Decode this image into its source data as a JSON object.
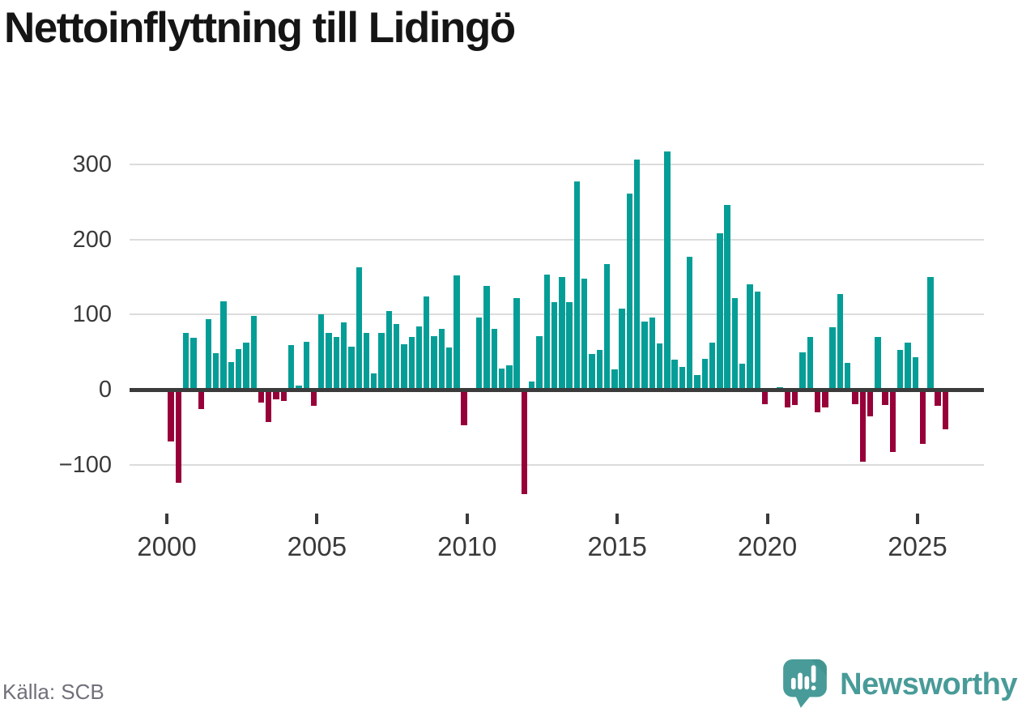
{
  "title": "Nettoinflyttning till Lidingö",
  "source": "Källa: SCB",
  "brand": {
    "name": "Newsworthy",
    "icon": "newsworthy-speech-bubble-chart-icon",
    "color": "#489B98"
  },
  "colors": {
    "positive": "#049E97",
    "negative": "#970038",
    "grid": "#DCDCDC",
    "axis": "#3B3B3B",
    "text": "#3A3A3A",
    "muted": "#70707A"
  },
  "chart_data": {
    "type": "bar",
    "title": "Nettoinflyttning till Lidingö",
    "xlabel": "",
    "ylabel": "",
    "frequency": "quarterly",
    "period_start": "2000-Q1",
    "period_end": "2025-Q4",
    "x_tick_labels": [
      "2000",
      "2005",
      "2010",
      "2015",
      "2020",
      "2025"
    ],
    "y_ticks": [
      300,
      200,
      100,
      0,
      -100
    ],
    "y_tick_labels": [
      "300",
      "200",
      "100",
      "0",
      "−100"
    ],
    "ylim": [
      -140,
      330
    ],
    "grid": "horizontal",
    "legend": "none",
    "positive_color": "#049E97",
    "negative_color": "#970038",
    "values": [
      -69,
      -124,
      76,
      69,
      -26,
      94,
      48,
      118,
      37,
      54,
      63,
      98,
      -17,
      -43,
      -13,
      -15,
      59,
      5,
      64,
      -22,
      100,
      76,
      70,
      89,
      57,
      163,
      75,
      22,
      76,
      105,
      87,
      60,
      70,
      84,
      124,
      71,
      81,
      56,
      152,
      -47,
      0,
      96,
      138,
      81,
      28,
      32,
      122,
      -139,
      11,
      71,
      153,
      116,
      150,
      117,
      277,
      148,
      47,
      53,
      167,
      27,
      108,
      261,
      306,
      91,
      96,
      61,
      317,
      40,
      30,
      177,
      19,
      41,
      63,
      208,
      246,
      122,
      34,
      140,
      130,
      -19,
      0,
      3,
      -24,
      -21,
      50,
      70,
      -30,
      -24,
      83,
      127,
      36,
      -19,
      -96,
      -36,
      70,
      -20,
      -83,
      53,
      63,
      43,
      -72,
      150,
      -22,
      -53
    ]
  }
}
